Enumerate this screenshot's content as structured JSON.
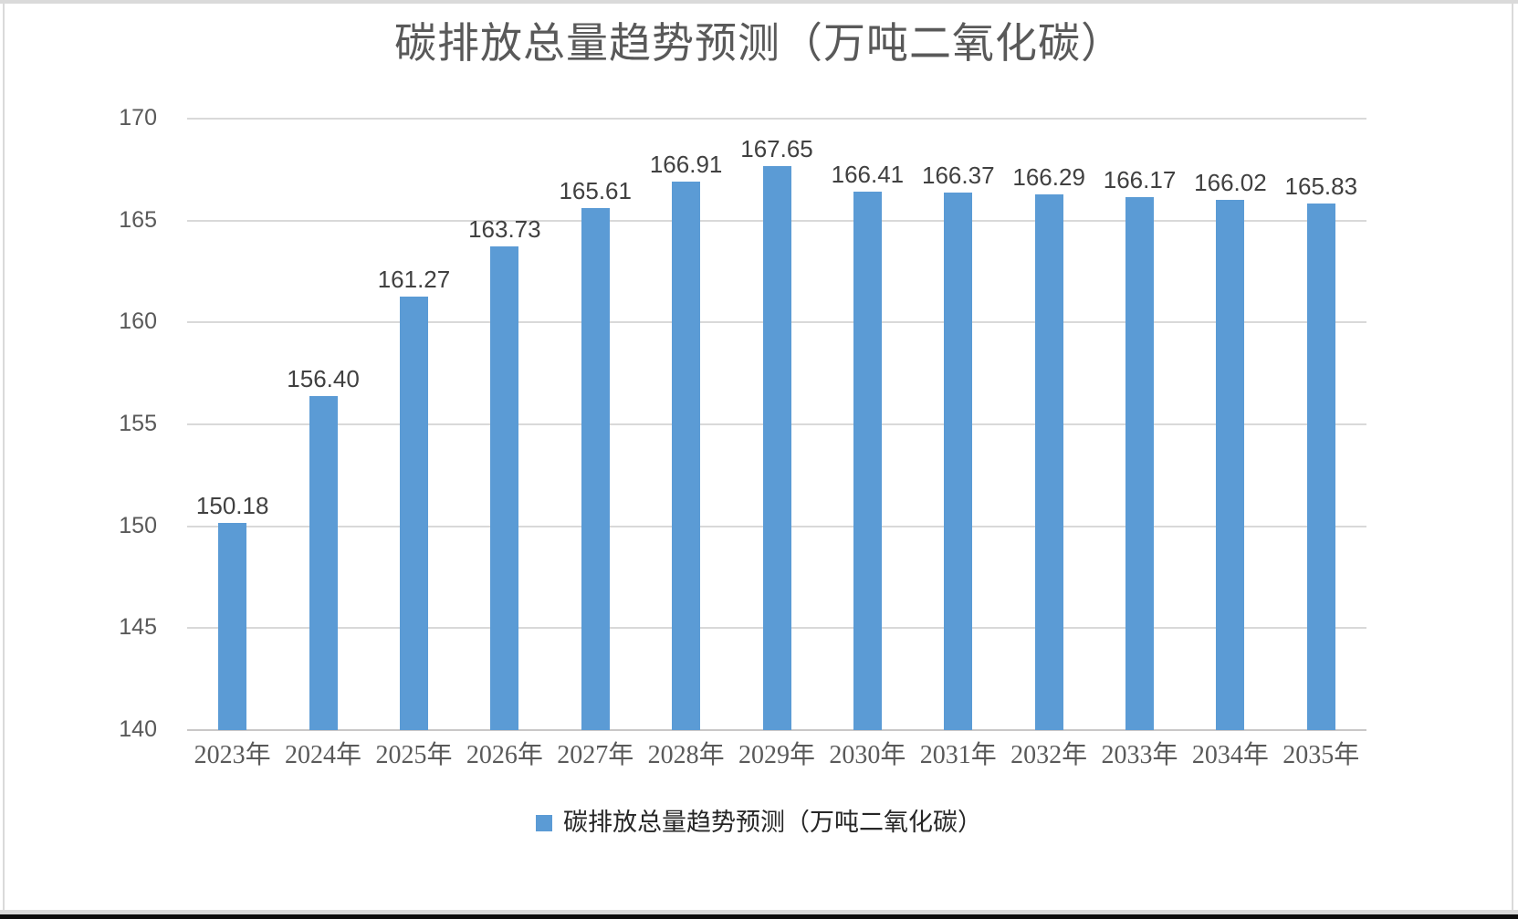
{
  "window": {
    "background": "#ffffff",
    "frame_color": "#dadada",
    "bottom_edge_color": "#0d0d0d"
  },
  "chart_data": {
    "type": "bar",
    "title": "碳排放总量趋势预测（万吨二氧化碳）",
    "legend_label": "碳排放总量趋势预测（万吨二氧化碳）",
    "legend_position": "bottom",
    "categories": [
      "2023年",
      "2024年",
      "2025年",
      "2026年",
      "2027年",
      "2028年",
      "2029年",
      "2030年",
      "2031年",
      "2032年",
      "2033年",
      "2034年",
      "2035年"
    ],
    "values": [
      150.18,
      156.4,
      161.27,
      163.73,
      165.61,
      166.91,
      167.65,
      166.41,
      166.37,
      166.29,
      166.17,
      166.02,
      165.83
    ],
    "data_labels": [
      "150.18",
      "156.40",
      "161.27",
      "163.73",
      "165.61",
      "166.91",
      "167.65",
      "166.41",
      "166.37",
      "166.29",
      "166.17",
      "166.02",
      "165.83"
    ],
    "xlabel": "",
    "ylabel": "",
    "ylim": [
      140,
      170
    ],
    "yticks": [
      140,
      145,
      150,
      155,
      160,
      165,
      170
    ],
    "grid": true,
    "bar_color": "#5B9BD5",
    "gridline_color": "#D9D9D9",
    "axis_line_color": "#C9C7C7",
    "axis_label_color": "#595959",
    "data_label_color": "#404040",
    "title_color": "#595959",
    "legend_text_color": "#262626"
  }
}
